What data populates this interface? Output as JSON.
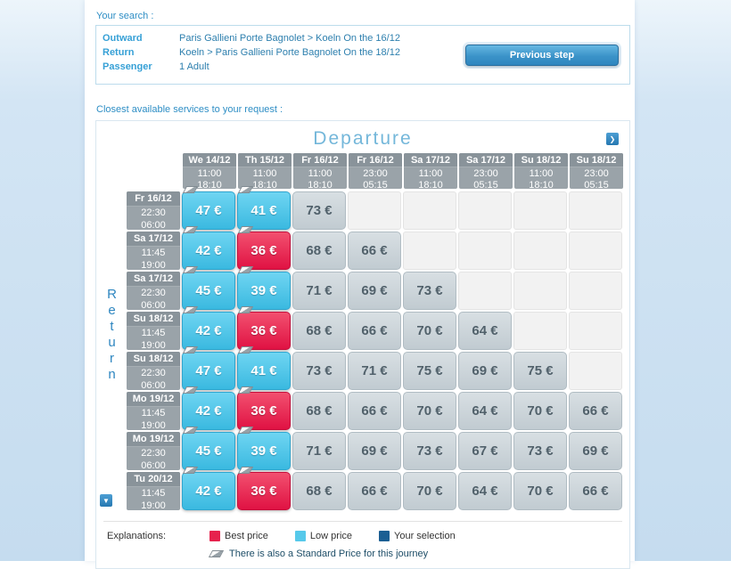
{
  "search": {
    "section_label": "Your search :",
    "rows": [
      {
        "label": "Outward",
        "value": "Paris Gallieni Porte Bagnolet > Koeln On the 16/12"
      },
      {
        "label": "Return",
        "value": "Koeln > Paris Gallieni Porte Bagnolet On the 18/12"
      },
      {
        "label": "Passenger",
        "value": "1 Adult"
      }
    ],
    "previous_step_label": "Previous step"
  },
  "closest_services_label": "Closest available services to your request :",
  "matrix": {
    "departure_title": "Departure",
    "return_title": "Return",
    "columns": [
      {
        "date": "We 14/12",
        "time1": "11:00",
        "time2": "18:10"
      },
      {
        "date": "Th 15/12",
        "time1": "11:00",
        "time2": "18:10"
      },
      {
        "date": "Fr 16/12",
        "time1": "11:00",
        "time2": "18:10"
      },
      {
        "date": "Fr 16/12",
        "time1": "23:00",
        "time2": "05:15"
      },
      {
        "date": "Sa 17/12",
        "time1": "11:00",
        "time2": "18:10"
      },
      {
        "date": "Sa 17/12",
        "time1": "23:00",
        "time2": "05:15"
      },
      {
        "date": "Su 18/12",
        "time1": "11:00",
        "time2": "18:10"
      },
      {
        "date": "Su 18/12",
        "time1": "23:00",
        "time2": "05:15"
      }
    ],
    "rows": [
      {
        "date": "Fr 16/12",
        "time1": "22:30",
        "time2": "06:00",
        "cells": [
          {
            "price": "47 €",
            "type": "low",
            "standard": true
          },
          {
            "price": "41 €",
            "type": "low",
            "standard": true
          },
          {
            "price": "73 €",
            "type": "std"
          },
          {
            "type": "empty"
          },
          {
            "type": "empty"
          },
          {
            "type": "empty"
          },
          {
            "type": "empty"
          },
          {
            "type": "empty"
          }
        ]
      },
      {
        "date": "Sa 17/12",
        "time1": "11:45",
        "time2": "19:00",
        "cells": [
          {
            "price": "42 €",
            "type": "low",
            "standard": true
          },
          {
            "price": "36 €",
            "type": "best",
            "standard": true
          },
          {
            "price": "68 €",
            "type": "std"
          },
          {
            "price": "66 €",
            "type": "std"
          },
          {
            "type": "empty"
          },
          {
            "type": "empty"
          },
          {
            "type": "empty"
          },
          {
            "type": "empty"
          }
        ]
      },
      {
        "date": "Sa 17/12",
        "time1": "22:30",
        "time2": "06:00",
        "cells": [
          {
            "price": "45 €",
            "type": "low",
            "standard": true
          },
          {
            "price": "39 €",
            "type": "low",
            "standard": true
          },
          {
            "price": "71 €",
            "type": "std"
          },
          {
            "price": "69 €",
            "type": "std"
          },
          {
            "price": "73 €",
            "type": "std"
          },
          {
            "type": "empty"
          },
          {
            "type": "empty"
          },
          {
            "type": "empty"
          }
        ]
      },
      {
        "date": "Su 18/12",
        "time1": "11:45",
        "time2": "19:00",
        "cells": [
          {
            "price": "42 €",
            "type": "low",
            "standard": true
          },
          {
            "price": "36 €",
            "type": "best",
            "standard": true
          },
          {
            "price": "68 €",
            "type": "std"
          },
          {
            "price": "66 €",
            "type": "std"
          },
          {
            "price": "70 €",
            "type": "std"
          },
          {
            "price": "64 €",
            "type": "std"
          },
          {
            "type": "empty"
          },
          {
            "type": "empty"
          }
        ]
      },
      {
        "date": "Su 18/12",
        "time1": "22:30",
        "time2": "06:00",
        "cells": [
          {
            "price": "47 €",
            "type": "low",
            "standard": true
          },
          {
            "price": "41 €",
            "type": "low",
            "standard": true
          },
          {
            "price": "73 €",
            "type": "std"
          },
          {
            "price": "71 €",
            "type": "std"
          },
          {
            "price": "75 €",
            "type": "std"
          },
          {
            "price": "69 €",
            "type": "std"
          },
          {
            "price": "75 €",
            "type": "std"
          },
          {
            "type": "empty"
          }
        ]
      },
      {
        "date": "Mo 19/12",
        "time1": "11:45",
        "time2": "19:00",
        "cells": [
          {
            "price": "42 €",
            "type": "low",
            "standard": true
          },
          {
            "price": "36 €",
            "type": "best",
            "standard": true
          },
          {
            "price": "68 €",
            "type": "std"
          },
          {
            "price": "66 €",
            "type": "std"
          },
          {
            "price": "70 €",
            "type": "std"
          },
          {
            "price": "64 €",
            "type": "std"
          },
          {
            "price": "70 €",
            "type": "std"
          },
          {
            "price": "66 €",
            "type": "std"
          }
        ]
      },
      {
        "date": "Mo 19/12",
        "time1": "22:30",
        "time2": "06:00",
        "cells": [
          {
            "price": "45 €",
            "type": "low",
            "standard": true
          },
          {
            "price": "39 €",
            "type": "low",
            "standard": true
          },
          {
            "price": "71 €",
            "type": "std"
          },
          {
            "price": "69 €",
            "type": "std"
          },
          {
            "price": "73 €",
            "type": "std"
          },
          {
            "price": "67 €",
            "type": "std"
          },
          {
            "price": "73 €",
            "type": "std"
          },
          {
            "price": "69 €",
            "type": "std"
          }
        ]
      },
      {
        "date": "Tu 20/12",
        "time1": "11:45",
        "time2": "19:00",
        "cells": [
          {
            "price": "42 €",
            "type": "low",
            "standard": true
          },
          {
            "price": "36 €",
            "type": "best",
            "standard": true
          },
          {
            "price": "68 €",
            "type": "std"
          },
          {
            "price": "66 €",
            "type": "std"
          },
          {
            "price": "70 €",
            "type": "std"
          },
          {
            "price": "64 €",
            "type": "std"
          },
          {
            "price": "70 €",
            "type": "std"
          },
          {
            "price": "66 €",
            "type": "std"
          }
        ]
      }
    ]
  },
  "legend": {
    "explanations_label": "Explanations:",
    "items": [
      {
        "label": "Best price",
        "color": "#e6224d"
      },
      {
        "label": "Low price",
        "color": "#56c9ea"
      },
      {
        "label": "Your selection",
        "color": "#1b5f93"
      }
    ],
    "standard_note": "There is also a Standard Price for this journey"
  }
}
